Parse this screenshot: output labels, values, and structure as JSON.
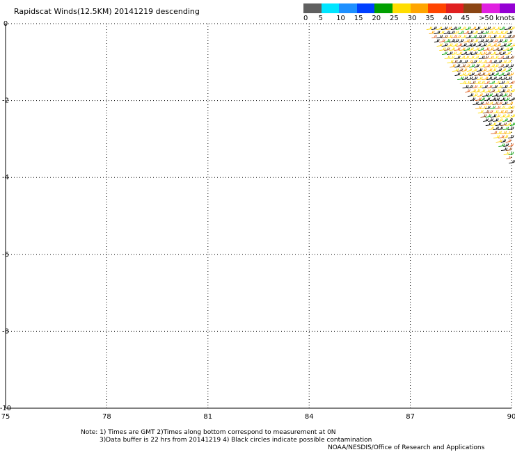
{
  "title": "Rapidscat Winds(12.5KM) 20141219 descending",
  "legend": {
    "colors": [
      "#606060",
      "#00e5ff",
      "#1e90ff",
      "#0040ff",
      "#00a000",
      "#ffdd00",
      "#ffa500",
      "#ff4500",
      "#e02020",
      "#8b4513",
      "#e020e0",
      "#9400d3"
    ],
    "labels": [
      "0",
      "5",
      "10",
      "15",
      "20",
      "25",
      "30",
      "35",
      "40",
      "45",
      ">50 knots"
    ]
  },
  "notes": {
    "line1": "Note: 1) Times are GMT 2)Times along bottom correspond to measurement at 0N",
    "line2": "3)Data buffer is 22 hrs from 20141219 4) Black circles indicate possible contamination",
    "line3": "NOAA/NESDIS/Office of Research and Applications"
  },
  "chart_data": {
    "type": "scatter",
    "title": "Rapidscat Winds(12.5KM) 20141219 descending",
    "xlabel": "",
    "ylabel": "",
    "xlim": [
      75,
      90
    ],
    "ylim": [
      -10,
      0
    ],
    "xticks": [
      "75",
      "78",
      "81",
      "84",
      "87",
      "90"
    ],
    "yticks": [
      "0",
      "-2",
      "-4",
      "-6",
      "-8",
      "-10"
    ],
    "grid": true,
    "swath_corners": [
      [
        87.4,
        -0.1
      ],
      [
        90.0,
        -0.1
      ],
      [
        90.0,
        -3.8
      ]
    ],
    "wind_speed_units": "knots"
  }
}
